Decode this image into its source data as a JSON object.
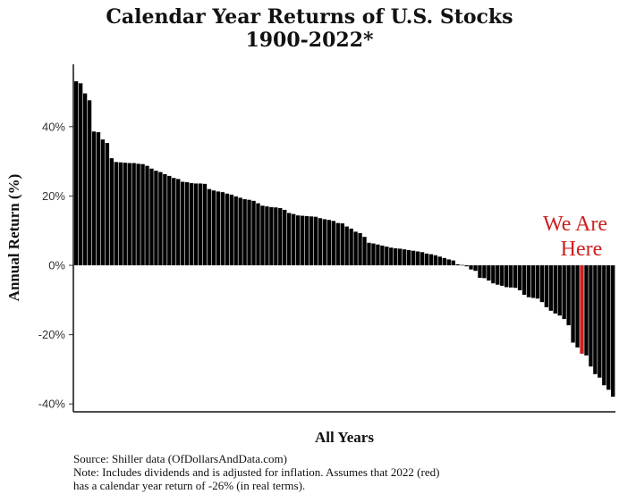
{
  "chart_data": {
    "type": "bar",
    "title_line1": "Calendar Year Returns of U.S. Stocks",
    "title_line2": "1900-2022*",
    "xlabel": "All Years",
    "ylabel": "Annual Return (%)",
    "ylim": [
      -42,
      58
    ],
    "yticks": [
      {
        "value": 40,
        "label": "40%"
      },
      {
        "value": 20,
        "label": "20%"
      },
      {
        "value": 0,
        "label": "0%"
      },
      {
        "value": -20,
        "label": "-20%"
      },
      {
        "value": -40,
        "label": "-40%"
      }
    ],
    "grid": false,
    "highlight_index": 114,
    "highlight_color": "#cc2020",
    "bar_color": "#000000",
    "annotation": {
      "line1": "We Are",
      "line2": "Here"
    },
    "values": [
      53.1,
      52.5,
      49.6,
      47.6,
      38.6,
      38.4,
      36.3,
      35.3,
      30.9,
      29.8,
      29.7,
      29.6,
      29.5,
      29.5,
      29.3,
      29.2,
      28.7,
      27.9,
      27.3,
      26.9,
      26.3,
      25.8,
      25.2,
      24.9,
      24.1,
      24.0,
      23.7,
      23.6,
      23.6,
      23.5,
      22.0,
      21.6,
      21.3,
      21.1,
      20.7,
      20.4,
      19.9,
      19.5,
      19.1,
      18.9,
      18.6,
      17.9,
      17.2,
      17.0,
      16.8,
      16.7,
      16.5,
      16.0,
      15.1,
      14.8,
      14.4,
      14.3,
      14.2,
      14.1,
      14.0,
      13.6,
      13.3,
      13.1,
      12.8,
      12.2,
      12.1,
      11.2,
      10.6,
      9.7,
      9.3,
      8.2,
      6.5,
      6.3,
      6.0,
      5.7,
      5.4,
      5.1,
      4.9,
      4.8,
      4.6,
      4.4,
      4.2,
      4.0,
      3.8,
      3.4,
      3.2,
      2.9,
      2.5,
      2.1,
      1.7,
      1.4,
      0.3,
      0.1,
      -0.3,
      -1.2,
      -1.6,
      -3.6,
      -3.7,
      -4.4,
      -5.2,
      -5.6,
      -5.9,
      -6.3,
      -6.4,
      -6.5,
      -7.2,
      -8.5,
      -9.2,
      -9.4,
      -9.6,
      -10.6,
      -12.1,
      -13.1,
      -13.9,
      -14.5,
      -15.5,
      -17.3,
      -22.3,
      -23.7,
      -25.5,
      -26.0,
      -29.2,
      -31.4,
      -32.4,
      -34.6,
      -35.9,
      -37.9
    ]
  },
  "source": {
    "line1": "Source: Shiller data (OfDollarsAndData.com)",
    "line2": "Note: Includes dividends and is adjusted for inflation. Assumes that 2022 (red)",
    "line3": "has a calendar year return of -26% (in real terms)."
  }
}
